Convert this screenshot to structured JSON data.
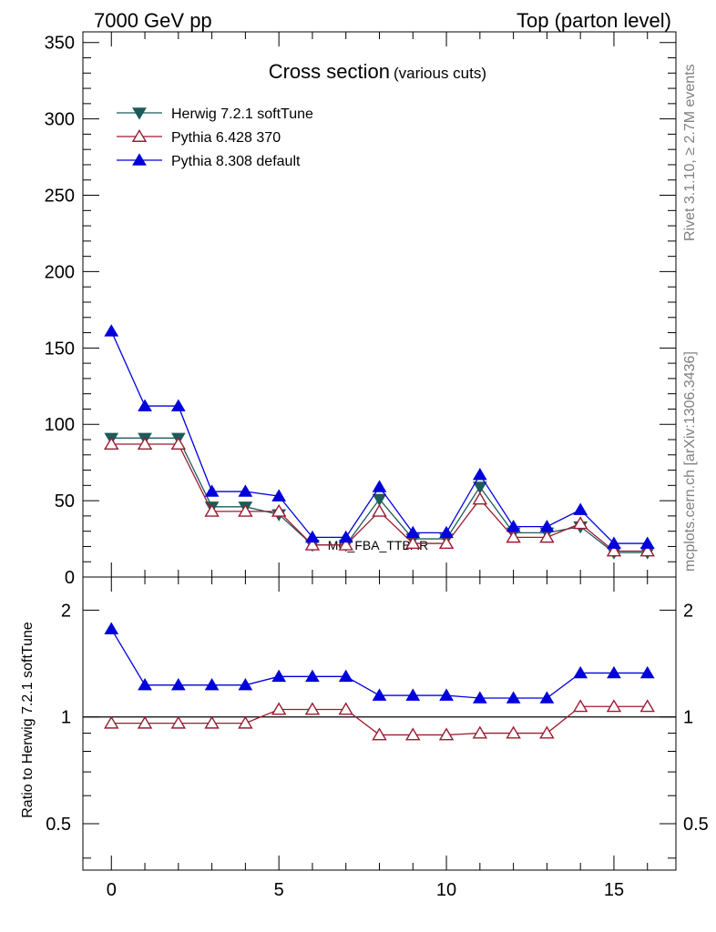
{
  "header": {
    "left": "7000 GeV pp",
    "right": "Top (parton level)"
  },
  "side_labels": {
    "rivet": "Rivet 3.1.10, ≥ 2.7M events",
    "mcplots": "mcplots.cern.ch [arXiv:1306.3436]"
  },
  "watermark": "MC_FBA_TTBAR",
  "colors": {
    "herwig": "#1f5a5a",
    "pythia6": "#9b1b30",
    "pythia8": "#0000dd",
    "reference_line": "#000000"
  },
  "chart_data": [
    {
      "type": "line",
      "title": "Cross section",
      "subtitle": "(various cuts)",
      "xlabel": "",
      "ylabel": "",
      "xlim": [
        -0.85,
        16.85
      ],
      "ylim": [
        0,
        357
      ],
      "yticks": [
        0,
        50,
        100,
        150,
        200,
        250,
        300,
        350
      ],
      "xticks": [
        0,
        5,
        10,
        15
      ],
      "legend_position": "top-left",
      "x": [
        0,
        1,
        2,
        3,
        4,
        5,
        6,
        7,
        8,
        9,
        10,
        11,
        12,
        13,
        14,
        15,
        16
      ],
      "series": [
        {
          "name": "Herwig 7.2.1 softTune",
          "marker": "triangle-down-filled",
          "color": "#1f5a5a",
          "values": [
            91,
            91,
            91,
            46,
            46,
            41,
            21,
            21,
            51,
            25,
            25,
            59,
            29,
            29,
            33,
            16,
            16
          ]
        },
        {
          "name": "Pythia 6.428 370",
          "marker": "triangle-up-open",
          "color": "#9b1b30",
          "values": [
            87,
            87,
            87,
            43,
            43,
            43,
            21,
            21,
            43,
            22,
            22,
            51,
            26,
            26,
            35,
            17,
            17
          ]
        },
        {
          "name": "Pythia 8.308 default",
          "marker": "triangle-up-filled",
          "color": "#0000dd",
          "values": [
            161,
            112,
            112,
            56,
            56,
            53,
            26,
            26,
            59,
            29,
            29,
            67,
            33,
            33,
            44,
            22,
            22
          ]
        }
      ]
    },
    {
      "type": "line",
      "title": "",
      "xlabel": "",
      "ylabel": "Ratio to Herwig 7.2.1 softTune",
      "xlim": [
        -0.85,
        16.85
      ],
      "ylim": [
        0.37,
        2.48
      ],
      "yscale": "log",
      "yticks": [
        0.5,
        1,
        2
      ],
      "ytick_labels": [
        "0.5",
        "1",
        "2"
      ],
      "xticks": [
        0,
        5,
        10,
        15
      ],
      "x": [
        0,
        1,
        2,
        3,
        4,
        5,
        6,
        7,
        8,
        9,
        10,
        11,
        12,
        13,
        14,
        15,
        16
      ],
      "reference": 1,
      "series": [
        {
          "name": "Pythia 6.428 370",
          "marker": "triangle-up-open",
          "color": "#9b1b30",
          "values": [
            0.96,
            0.96,
            0.96,
            0.96,
            0.96,
            1.05,
            1.05,
            1.05,
            0.89,
            0.89,
            0.89,
            0.9,
            0.9,
            0.9,
            1.07,
            1.07,
            1.07
          ]
        },
        {
          "name": "Pythia 8.308 default",
          "marker": "triangle-up-filled",
          "color": "#0000dd",
          "values": [
            1.77,
            1.23,
            1.23,
            1.23,
            1.23,
            1.3,
            1.3,
            1.3,
            1.15,
            1.15,
            1.15,
            1.13,
            1.13,
            1.13,
            1.33,
            1.33,
            1.33
          ]
        }
      ]
    }
  ]
}
